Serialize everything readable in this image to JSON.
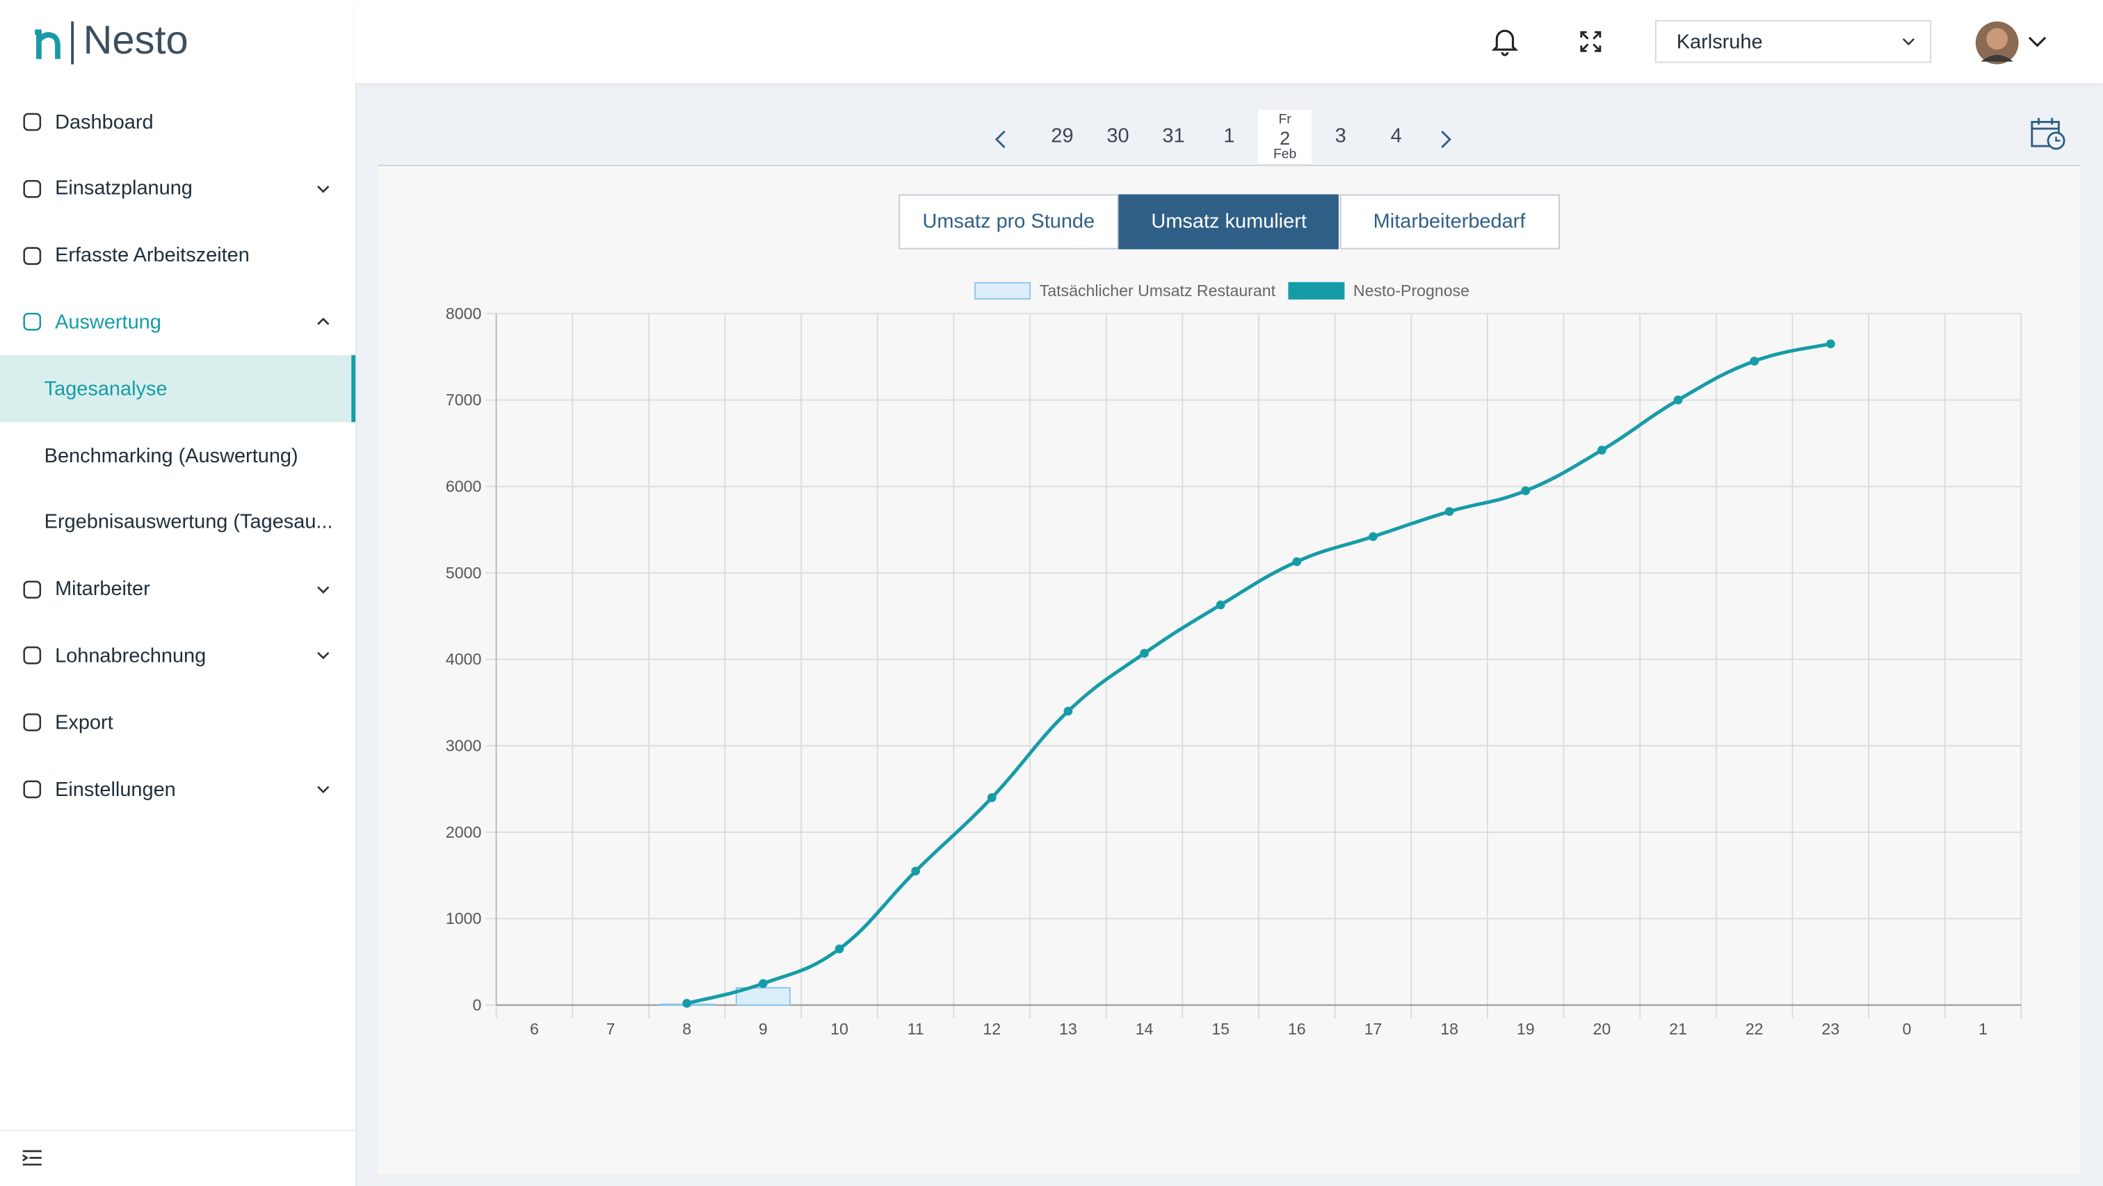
{
  "header": {
    "logo": "Nesto",
    "location": "Karlsruhe"
  },
  "sidebar": {
    "items": [
      {
        "label": "Dashboard"
      },
      {
        "label": "Einsatzplanung",
        "expandable": true
      },
      {
        "label": "Erfasste Arbeitszeiten"
      },
      {
        "label": "Auswertung",
        "expandable": true,
        "expanded": true,
        "active": true,
        "children": [
          {
            "label": "Tagesanalyse",
            "selected": true
          },
          {
            "label": "Benchmarking (Auswertung)"
          },
          {
            "label": "Ergebnisauswertung (Tagesau..."
          }
        ]
      },
      {
        "label": "Mitarbeiter",
        "expandable": true
      },
      {
        "label": "Lohnabrechnung",
        "expandable": true
      },
      {
        "label": "Export"
      },
      {
        "label": "Einstellungen",
        "expandable": true
      }
    ]
  },
  "date_nav": {
    "days": [
      {
        "day": "29"
      },
      {
        "day": "30"
      },
      {
        "day": "31"
      },
      {
        "day": "1"
      },
      {
        "weekday": "Fr",
        "day": "2",
        "month": "Feb",
        "selected": true
      },
      {
        "day": "3"
      },
      {
        "day": "4"
      }
    ]
  },
  "tabs": [
    {
      "label": "Umsatz pro Stunde"
    },
    {
      "label": "Umsatz kumuliert",
      "active": true
    },
    {
      "label": "Mitarbeiterbedarf"
    }
  ],
  "chart_data": {
    "type": "combo",
    "categories": [
      "6",
      "7",
      "8",
      "9",
      "10",
      "11",
      "12",
      "13",
      "14",
      "15",
      "16",
      "17",
      "18",
      "19",
      "20",
      "21",
      "22",
      "23",
      "0",
      "1"
    ],
    "series": [
      {
        "name": "Tatsächlicher Umsatz Restaurant",
        "type": "bar",
        "color": "#dbeefa",
        "border_color": "#8cc5e8",
        "values": [
          null,
          null,
          10,
          200,
          null,
          null,
          null,
          null,
          null,
          null,
          null,
          null,
          null,
          null,
          null,
          null,
          null,
          null,
          null,
          null
        ]
      },
      {
        "name": "Nesto-Prognose",
        "type": "line",
        "color": "#169ca7",
        "values": [
          null,
          null,
          20,
          250,
          650,
          1550,
          2400,
          3400,
          4070,
          4630,
          5130,
          5420,
          5710,
          5950,
          6420,
          7000,
          7450,
          7650,
          null,
          null
        ]
      }
    ],
    "ylim": [
      0,
      8000
    ],
    "yticks": [
      0,
      1000,
      2000,
      3000,
      4000,
      5000,
      6000,
      7000,
      8000
    ],
    "grid": true,
    "legend": "top"
  }
}
